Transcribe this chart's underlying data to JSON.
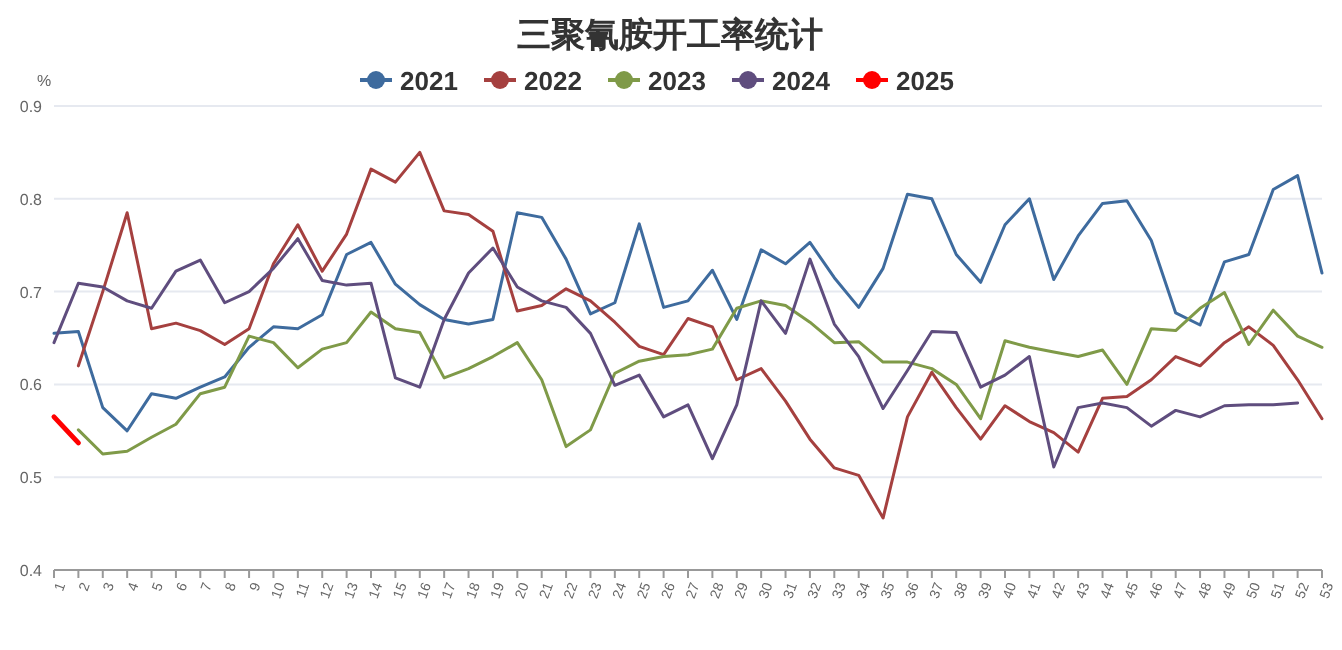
{
  "chart_data": {
    "type": "line",
    "title": "三聚氰胺开工率统计",
    "ylabel": "%",
    "categories": [
      "1",
      "2",
      "3",
      "4",
      "5",
      "6",
      "7",
      "8",
      "9",
      "10",
      "11",
      "12",
      "13",
      "14",
      "15",
      "16",
      "17",
      "18",
      "19",
      "20",
      "21",
      "22",
      "23",
      "24",
      "25",
      "26",
      "27",
      "28",
      "29",
      "30",
      "31",
      "32",
      "33",
      "34",
      "35",
      "36",
      "37",
      "38",
      "39",
      "40",
      "41",
      "42",
      "43",
      "44",
      "45",
      "46",
      "47",
      "48",
      "49",
      "50",
      "51",
      "52",
      "53"
    ],
    "series": [
      {
        "name": "2021",
        "color": "#3e6b9e",
        "values": [
          0.655,
          0.657,
          0.575,
          0.55,
          0.59,
          0.585,
          0.597,
          0.608,
          0.64,
          0.662,
          0.66,
          0.675,
          0.74,
          0.753,
          0.708,
          0.686,
          0.67,
          0.665,
          0.67,
          0.785,
          0.78,
          0.735,
          0.676,
          0.688,
          0.773,
          0.683,
          0.69,
          0.723,
          0.67,
          0.745,
          0.73,
          0.753,
          0.715,
          0.683,
          0.725,
          0.805,
          0.8,
          0.74,
          0.71,
          0.772,
          0.8,
          0.713,
          0.76,
          0.795,
          0.798,
          0.755,
          0.677,
          0.664,
          0.732,
          0.74,
          0.81,
          0.825,
          0.72
        ]
      },
      {
        "name": "2022",
        "color": "#a5403f",
        "values": [
          null,
          0.62,
          0.7,
          0.785,
          0.66,
          0.666,
          0.658,
          0.643,
          0.66,
          0.73,
          0.772,
          0.722,
          0.762,
          0.832,
          0.818,
          0.85,
          0.787,
          0.783,
          0.765,
          0.679,
          0.685,
          0.703,
          0.69,
          0.667,
          0.641,
          0.632,
          0.671,
          0.662,
          0.605,
          0.617,
          0.582,
          0.541,
          0.51,
          0.502,
          0.456,
          0.565,
          0.613,
          0.575,
          0.541,
          0.577,
          0.56,
          0.548,
          0.527,
          0.585,
          0.587,
          0.605,
          0.63,
          0.62,
          0.645,
          0.662,
          0.642,
          0.605,
          0.563
        ]
      },
      {
        "name": "2023",
        "color": "#7f9a48",
        "values": [
          null,
          0.551,
          0.525,
          0.528,
          0.543,
          0.557,
          0.59,
          0.597,
          0.652,
          0.645,
          0.618,
          0.638,
          0.645,
          0.678,
          0.66,
          0.656,
          0.607,
          0.617,
          0.63,
          0.645,
          0.605,
          0.533,
          0.551,
          0.612,
          0.625,
          0.63,
          0.632,
          0.638,
          0.682,
          0.69,
          0.685,
          0.667,
          0.645,
          0.646,
          0.624,
          0.624,
          0.617,
          0.6,
          0.563,
          0.647,
          0.64,
          0.635,
          0.63,
          0.637,
          0.6,
          0.66,
          0.658,
          0.682,
          0.699,
          0.643,
          0.68,
          0.652,
          0.64
        ]
      },
      {
        "name": "2024",
        "color": "#5f4d7e",
        "values": [
          0.645,
          0.709,
          0.705,
          0.69,
          0.682,
          0.722,
          0.734,
          0.688,
          0.7,
          0.725,
          0.757,
          0.712,
          0.707,
          0.709,
          0.607,
          0.597,
          0.67,
          0.72,
          0.747,
          0.705,
          0.69,
          0.683,
          0.655,
          0.599,
          0.61,
          0.565,
          0.578,
          0.52,
          0.578,
          0.69,
          0.655,
          0.735,
          0.665,
          0.63,
          0.574,
          0.615,
          0.657,
          0.656,
          0.597,
          0.61,
          0.63,
          0.511,
          0.575,
          0.58,
          0.575,
          0.555,
          0.572,
          0.565,
          0.577,
          0.578,
          0.578,
          0.58,
          null
        ]
      },
      {
        "name": "2025",
        "color": "#ff0000",
        "values": [
          0.565,
          0.537,
          null,
          null,
          null,
          null,
          null,
          null,
          null,
          null,
          null,
          null,
          null,
          null,
          null,
          null,
          null,
          null,
          null,
          null,
          null,
          null,
          null,
          null,
          null,
          null,
          null,
          null,
          null,
          null,
          null,
          null,
          null,
          null,
          null,
          null,
          null,
          null,
          null,
          null,
          null,
          null,
          null,
          null,
          null,
          null,
          null,
          null,
          null,
          null,
          null,
          null,
          null
        ]
      }
    ],
    "ylim": [
      0.4,
      0.9
    ],
    "yticks": [
      0.4,
      0.5,
      0.6,
      0.7,
      0.8,
      0.9
    ],
    "grid": "y",
    "legend": "top"
  }
}
